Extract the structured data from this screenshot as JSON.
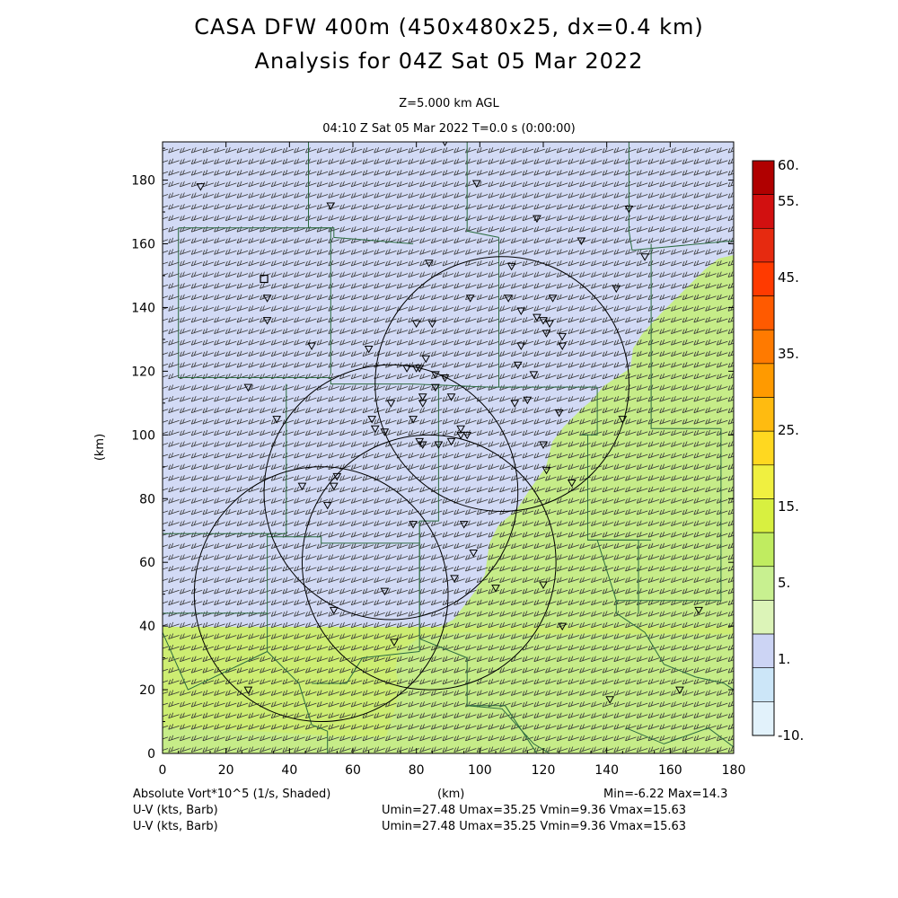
{
  "title": {
    "line1": "CASA DFW 400m (450x480x25, dx=0.4 km)",
    "line2": "Analysis for 04Z Sat 05 Mar 2022"
  },
  "level": "Z=5.000 km AGL",
  "time": "04:10 Z Sat 05 Mar 2022    T=0.0 s (0:00:00)",
  "axes": {
    "x_label": "(km)",
    "y_label": "(km)",
    "x_range": [
      0,
      180
    ],
    "y_range": [
      0,
      192
    ],
    "x_ticks": [
      "0",
      "20",
      "40",
      "60",
      "80",
      "100",
      "120",
      "140",
      "160",
      "180"
    ],
    "y_ticks": [
      "0",
      "20",
      "40",
      "60",
      "80",
      "100",
      "120",
      "140",
      "160",
      "180"
    ]
  },
  "colorbar": {
    "labels": [
      "60.",
      "55.",
      "45.",
      "35.",
      "25.",
      "15.",
      "5.",
      "1.",
      "-10."
    ],
    "colors": [
      "#b00000",
      "#d21010",
      "#e62a10",
      "#ff3a00",
      "#ff5a00",
      "#ff7a00",
      "#ff9a00",
      "#ffbb10",
      "#ffd820",
      "#f0f040",
      "#d8f040",
      "#c0ec60",
      "#c8f090",
      "#dcf4b8",
      "#ccd4f4",
      "#cce6f8",
      "#e2f2fb"
    ]
  },
  "field_colors": {
    "blue": "#d2daf5",
    "green": "#c6ec88",
    "yellowgreen": "#d4ee60"
  },
  "footer": {
    "field": "Absolute Vort*10^5 (1/s, Shaded)",
    "x_units": "(km)",
    "minmax": "Min=-6.22 Max=14.3",
    "uv1_label": "U-V (kts, Barb)",
    "uv1_range": "Umin=27.48 Umax=35.25 Vmin=9.36 Vmax=15.63",
    "uv2_label": "U-V (kts, Barb)",
    "uv2_range": "Umin=27.48 Umax=35.25 Vmin=9.36 Vmax=15.63"
  },
  "radars": [
    {
      "x": 50,
      "y": 50,
      "r": 40
    },
    {
      "x": 84,
      "y": 60,
      "r": 40
    },
    {
      "x": 72,
      "y": 82,
      "r": 40
    },
    {
      "x": 107,
      "y": 116,
      "r": 40
    }
  ],
  "stations": [
    [
      12,
      178
    ],
    [
      89,
      192
    ],
    [
      99,
      179
    ],
    [
      53,
      172
    ],
    [
      147,
      171
    ],
    [
      118,
      168
    ],
    [
      132,
      161
    ],
    [
      152,
      156
    ],
    [
      84,
      154
    ],
    [
      110,
      153
    ],
    [
      143,
      146
    ],
    [
      33,
      143
    ],
    [
      97,
      143
    ],
    [
      109,
      143
    ],
    [
      123,
      143
    ],
    [
      113,
      139
    ],
    [
      118,
      137
    ],
    [
      120,
      136
    ],
    [
      122,
      135
    ],
    [
      126,
      131
    ],
    [
      121,
      132
    ],
    [
      33,
      136
    ],
    [
      80,
      135
    ],
    [
      85,
      135
    ],
    [
      47,
      128
    ],
    [
      126,
      128
    ],
    [
      113,
      128
    ],
    [
      65,
      127
    ],
    [
      83,
      124
    ],
    [
      80,
      121
    ],
    [
      81,
      121
    ],
    [
      77,
      121
    ],
    [
      86,
      119
    ],
    [
      89,
      118
    ],
    [
      112,
      122
    ],
    [
      117,
      119
    ],
    [
      27,
      115
    ],
    [
      86,
      115
    ],
    [
      82,
      112
    ],
    [
      72,
      110
    ],
    [
      82,
      110
    ],
    [
      91,
      112
    ],
    [
      111,
      110
    ],
    [
      115,
      111
    ],
    [
      125,
      107
    ],
    [
      145,
      105
    ],
    [
      36,
      105
    ],
    [
      66,
      105
    ],
    [
      79,
      105
    ],
    [
      67,
      102
    ],
    [
      70,
      101
    ],
    [
      94,
      102
    ],
    [
      94,
      100
    ],
    [
      91,
      98
    ],
    [
      81,
      98
    ],
    [
      82,
      97
    ],
    [
      87,
      97
    ],
    [
      96,
      100
    ],
    [
      120,
      97
    ],
    [
      121,
      89
    ],
    [
      129,
      85
    ],
    [
      55,
      87
    ],
    [
      54,
      84
    ],
    [
      44,
      84
    ],
    [
      52,
      78
    ],
    [
      79,
      72
    ],
    [
      95,
      72
    ],
    [
      98,
      63
    ],
    [
      92,
      55
    ],
    [
      105,
      52
    ],
    [
      120,
      53
    ],
    [
      70,
      51
    ],
    [
      54,
      45
    ],
    [
      169,
      45
    ],
    [
      126,
      40
    ],
    [
      73,
      35
    ],
    [
      27,
      20
    ],
    [
      163,
      20
    ],
    [
      141,
      17
    ]
  ],
  "station_squares": [
    [
      32,
      149
    ]
  ],
  "boundaries": [
    [
      [
        46,
        192
      ],
      [
        46,
        165
      ],
      [
        54,
        165
      ],
      [
        54,
        162
      ],
      [
        79,
        160
      ]
    ],
    [
      [
        96,
        192
      ],
      [
        96,
        164
      ],
      [
        106,
        162
      ]
    ],
    [
      [
        147,
        192
      ],
      [
        147,
        164
      ],
      [
        148,
        158
      ],
      [
        180,
        161
      ]
    ],
    [
      [
        5,
        165
      ],
      [
        53,
        165
      ],
      [
        53,
        119
      ]
    ],
    [
      [
        5,
        165
      ],
      [
        5,
        118
      ],
      [
        53,
        118
      ],
      [
        53,
        116
      ],
      [
        79,
        116
      ],
      [
        103,
        115
      ],
      [
        137,
        115
      ]
    ],
    [
      [
        106,
        162
      ],
      [
        106,
        115
      ]
    ],
    [
      [
        137,
        115
      ],
      [
        137,
        100
      ],
      [
        132,
        100
      ]
    ],
    [
      [
        39,
        116
      ],
      [
        39,
        69
      ]
    ],
    [
      [
        39,
        69
      ],
      [
        0,
        69
      ],
      [
        0,
        44
      ],
      [
        33,
        44
      ],
      [
        33,
        69
      ]
    ],
    [
      [
        33,
        69
      ],
      [
        33,
        68
      ],
      [
        50,
        68
      ],
      [
        50,
        66
      ],
      [
        81,
        66
      ]
    ],
    [
      [
        87,
        116
      ],
      [
        87,
        73
      ],
      [
        81,
        73
      ],
      [
        81,
        32
      ]
    ],
    [
      [
        81,
        73
      ],
      [
        81,
        36
      ]
    ],
    [
      [
        132,
        100
      ],
      [
        134,
        100
      ],
      [
        134,
        67
      ],
      [
        154,
        67
      ]
    ],
    [
      [
        154,
        160
      ],
      [
        154,
        102
      ],
      [
        176,
        102
      ],
      [
        176,
        48
      ],
      [
        143,
        48
      ]
    ],
    [
      [
        137,
        67
      ],
      [
        143,
        48
      ],
      [
        143,
        44
      ]
    ],
    [
      [
        0,
        38
      ],
      [
        8,
        20
      ],
      [
        33,
        32
      ],
      [
        33,
        44
      ]
    ],
    [
      [
        33,
        32
      ],
      [
        43,
        22
      ],
      [
        47,
        9
      ],
      [
        52,
        7
      ]
    ],
    [
      [
        52,
        7
      ],
      [
        52,
        0
      ]
    ],
    [
      [
        81,
        32
      ],
      [
        63,
        30
      ],
      [
        58,
        22
      ],
      [
        47,
        22
      ]
    ],
    [
      [
        81,
        36
      ],
      [
        96,
        30
      ],
      [
        96,
        15
      ],
      [
        107,
        14
      ],
      [
        117,
        3
      ],
      [
        122,
        0
      ]
    ],
    [
      [
        96,
        15
      ],
      [
        108,
        15
      ],
      [
        118,
        0
      ]
    ],
    [
      [
        143,
        44
      ],
      [
        152,
        38
      ],
      [
        158,
        28
      ],
      [
        168,
        24
      ],
      [
        177,
        22
      ],
      [
        180,
        20
      ]
    ],
    [
      [
        134,
        67
      ],
      [
        150,
        67
      ],
      [
        150,
        44
      ]
    ],
    [
      [
        146,
        8
      ],
      [
        158,
        3
      ],
      [
        172,
        8
      ],
      [
        180,
        2
      ]
    ]
  ]
}
